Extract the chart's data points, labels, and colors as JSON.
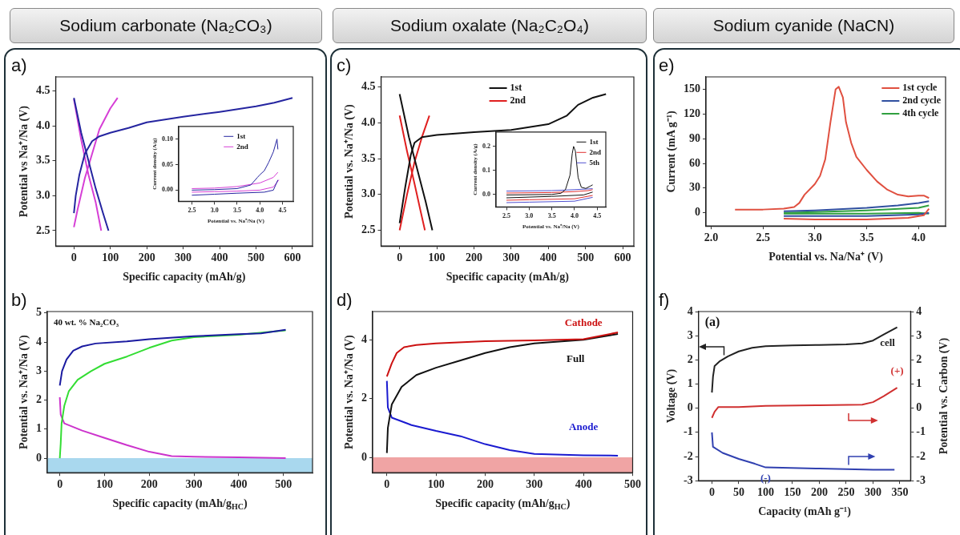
{
  "chart_data": [
    {
      "type": "line",
      "title": "Sodium carbonate (Na₂CO₃)",
      "annotations": [
        "a)"
      ],
      "xlabel": "Specific capacity (mAh/g)",
      "ylabel": "Potential vs Na⁺/Na (V)",
      "xlim": [
        -50,
        655
      ],
      "ylim": [
        2.28,
        4.7
      ],
      "xticks": [
        0,
        100,
        200,
        300,
        400,
        500,
        600
      ],
      "yticks": [
        {
          "value": 2.5,
          "label": "2.5"
        },
        {
          "value": 3,
          "label": "3.0"
        },
        {
          "value": 3.5,
          "label": "3.5"
        },
        {
          "value": 4,
          "label": "4.0"
        },
        {
          "value": 4.5,
          "label": "4.5"
        }
      ],
      "legend": false,
      "marker": "none",
      "series": [
        {
          "color": "#2525a0",
          "x": [
            0,
            5,
            15,
            30,
            50,
            70,
            100,
            150,
            200,
            300,
            400,
            500,
            550,
            600
          ],
          "values": [
            2.75,
            3.0,
            3.3,
            3.6,
            3.78,
            3.85,
            3.9,
            3.97,
            4.05,
            4.13,
            4.2,
            4.28,
            4.33,
            4.4
          ]
        },
        {
          "color": "#2525a0",
          "x": [
            0,
            20,
            40,
            60,
            80,
            95
          ],
          "values": [
            4.4,
            3.9,
            3.5,
            3.1,
            2.75,
            2.5
          ]
        },
        {
          "color": "#d63fd6",
          "x": [
            0,
            10,
            30,
            50,
            70,
            100,
            120
          ],
          "values": [
            2.55,
            2.8,
            3.25,
            3.6,
            3.95,
            4.25,
            4.4
          ]
        },
        {
          "color": "#d63fd6",
          "x": [
            0,
            20,
            40,
            60,
            75
          ],
          "values": [
            4.38,
            3.8,
            3.3,
            2.9,
            2.5
          ]
        }
      ]
    },
    {
      "type": "line",
      "xlabel": "Potential vs. Na⁺/Na (V)",
      "ylabel": "Current density (A/g)",
      "xlim": [
        2.21,
        4.74
      ],
      "ylim": [
        -0.022,
        0.125
      ],
      "xticks": [
        {
          "value": 2.5,
          "label": "2.5"
        },
        {
          "value": 3,
          "label": "3.0"
        },
        {
          "value": 3.5,
          "label": "3.5"
        },
        {
          "value": 4,
          "label": "4.0"
        },
        {
          "value": 4.5,
          "label": "4.5"
        }
      ],
      "yticks": [
        {
          "value": 0,
          "label": "0.00"
        },
        {
          "value": 0.05,
          "label": "0.05"
        },
        {
          "value": 0.1,
          "label": "0.10"
        }
      ],
      "legend": "top",
      "marker": "none",
      "series": [
        {
          "name": "1st",
          "color": "#2525a0",
          "x": [
            2.5,
            3.0,
            3.5,
            3.8,
            3.95,
            4.0,
            4.1,
            4.2,
            4.3,
            4.38,
            4.4
          ],
          "values": [
            0.0,
            0.001,
            0.003,
            0.01,
            0.025,
            0.03,
            0.038,
            0.055,
            0.075,
            0.1,
            0.08
          ]
        },
        {
          "color": "#2525a0",
          "x": [
            4.4,
            4.3,
            4.1,
            3.5,
            3.0,
            2.5
          ],
          "values": [
            0.02,
            0.0,
            -0.004,
            -0.006,
            -0.008,
            -0.01
          ]
        },
        {
          "name": "2nd",
          "color": "#d63fd6",
          "x": [
            2.5,
            3.0,
            3.5,
            4.0,
            4.3,
            4.4
          ],
          "values": [
            0.003,
            0.004,
            0.007,
            0.014,
            0.025,
            0.035
          ]
        },
        {
          "color": "#d63fd6",
          "x": [
            4.42,
            4.3,
            4.0,
            3.5,
            3.0,
            2.5
          ],
          "values": [
            0.02,
            0.006,
            0.0,
            -0.002,
            -0.003,
            -0.004
          ]
        }
      ]
    },
    {
      "type": "line",
      "annotations": [
        "b)",
        "40 wt. % Na₂CO₃"
      ],
      "xlabel": "Specific capacity (mAh/g$_{HC}$)",
      "ylabel": "Potential vs. Na⁺/Na (V)",
      "xlim": [
        -28,
        565
      ],
      "ylim": [
        -0.5,
        5.05
      ],
      "xticks": [
        0,
        100,
        200,
        300,
        400,
        500
      ],
      "yticks": [
        0,
        1,
        2,
        3,
        4,
        5
      ],
      "legend": false,
      "marker": "none",
      "bands": [
        {
          "axis": "y",
          "from": -0.5,
          "to": 0,
          "color": "#a9d8ee"
        }
      ],
      "series": [
        {
          "color": "#1a1aa0",
          "x": [
            0,
            5,
            15,
            30,
            50,
            80,
            150,
            200,
            300,
            400,
            450,
            505
          ],
          "values": [
            2.5,
            3.0,
            3.4,
            3.7,
            3.85,
            3.95,
            4.02,
            4.1,
            4.2,
            4.27,
            4.3,
            4.42
          ]
        },
        {
          "color": "#33dd33",
          "x": [
            0,
            2,
            4,
            10,
            20,
            40,
            70,
            100,
            150,
            200,
            250,
            300,
            400,
            505
          ],
          "values": [
            0,
            0.5,
            1.2,
            1.8,
            2.3,
            2.7,
            3.0,
            3.25,
            3.5,
            3.8,
            4.05,
            4.17,
            4.25,
            4.4
          ]
        },
        {
          "color": "#cc33cc",
          "x": [
            0,
            2,
            10,
            50,
            100,
            150,
            200,
            250,
            300,
            400,
            505
          ],
          "values": [
            2.1,
            1.5,
            1.2,
            0.95,
            0.7,
            0.45,
            0.22,
            0.07,
            0.05,
            0.03,
            0.0
          ]
        }
      ]
    },
    {
      "type": "line",
      "title": "Sodium oxalate (Na₂C₂O₄)",
      "annotations": [
        "c)"
      ],
      "xlabel": "Specific capacity (mAh/g)",
      "ylabel": "Potential vs. Na⁺/Na (V)",
      "xlim": [
        -50,
        630
      ],
      "ylim": [
        2.28,
        4.64
      ],
      "xticks": [
        0,
        100,
        200,
        300,
        400,
        500,
        600
      ],
      "yticks": [
        {
          "value": 2.5,
          "label": "2.5"
        },
        {
          "value": 3,
          "label": "3.0"
        },
        {
          "value": 3.5,
          "label": "3.5"
        },
        {
          "value": 4,
          "label": "4.0"
        },
        {
          "value": 4.5,
          "label": "4.5"
        }
      ],
      "legend": "top",
      "marker": "none",
      "series": [
        {
          "name": "1st",
          "color": "#111111",
          "x": [
            0,
            15,
            30,
            40,
            60,
            100,
            200,
            300,
            400,
            450,
            480,
            520,
            555
          ],
          "values": [
            2.6,
            3.1,
            3.55,
            3.72,
            3.8,
            3.83,
            3.87,
            3.9,
            3.98,
            4.1,
            4.25,
            4.35,
            4.4
          ]
        },
        {
          "color": "#111111",
          "x": [
            0,
            25,
            50,
            70,
            88
          ],
          "values": [
            4.4,
            3.8,
            3.3,
            2.9,
            2.5
          ]
        },
        {
          "name": "2nd",
          "color": "#e02020",
          "x": [
            0,
            20,
            40,
            60,
            80
          ],
          "values": [
            2.5,
            3.0,
            3.45,
            3.8,
            4.1
          ]
        },
        {
          "color": "#e02020",
          "x": [
            0,
            20,
            40,
            55,
            68
          ],
          "values": [
            4.1,
            3.6,
            3.15,
            2.8,
            2.5
          ]
        }
      ]
    },
    {
      "type": "line",
      "xlabel": "Potential vs. Na⁺/Na (V)",
      "ylabel": "Current density (A/g)",
      "xlim": [
        2.27,
        4.69
      ],
      "ylim": [
        -0.052,
        0.26
      ],
      "xticks": [
        {
          "value": 2.5,
          "label": "2.5"
        },
        {
          "value": 3,
          "label": "3.0"
        },
        {
          "value": 3.5,
          "label": "3.5"
        },
        {
          "value": 4,
          "label": "4.0"
        },
        {
          "value": 4.5,
          "label": "4.5"
        }
      ],
      "yticks": [
        {
          "value": 0,
          "label": "0.0"
        },
        {
          "value": 0.1,
          "label": "0.1"
        },
        {
          "value": 0.2,
          "label": "0.2"
        }
      ],
      "legend": "top right",
      "marker": "none",
      "series": [
        {
          "name": "1st",
          "color": "#111111",
          "x": [
            2.5,
            3.5,
            3.7,
            3.8,
            3.9,
            3.95,
            3.98,
            4.02,
            4.08,
            4.15,
            4.25,
            4.35,
            4.4
          ],
          "values": [
            -0.002,
            0.0,
            0.005,
            0.02,
            0.08,
            0.17,
            0.2,
            0.18,
            0.07,
            0.03,
            0.025,
            0.035,
            0.04
          ]
        },
        {
          "color": "#111111",
          "x": [
            4.4,
            4.2,
            3.5,
            2.5
          ],
          "values": [
            0.01,
            -0.002,
            -0.008,
            -0.014
          ]
        },
        {
          "name": "2nd",
          "color": "#e03030",
          "x": [
            2.5,
            3.5,
            4.0,
            4.3,
            4.4
          ],
          "values": [
            0.006,
            0.008,
            0.012,
            0.016,
            0.02
          ]
        },
        {
          "color": "#e03030",
          "x": [
            4.4,
            4.0,
            3.0,
            2.5
          ],
          "values": [
            -0.004,
            -0.018,
            -0.022,
            -0.024
          ]
        },
        {
          "name": "5th",
          "color": "#5050d0",
          "x": [
            2.5,
            3.5,
            4.0,
            4.4
          ],
          "values": [
            0.014,
            0.016,
            0.02,
            0.024
          ]
        },
        {
          "color": "#5050d0",
          "x": [
            4.4,
            4.0,
            3.0,
            2.5
          ],
          "values": [
            -0.012,
            -0.028,
            -0.032,
            -0.034
          ]
        }
      ]
    },
    {
      "type": "line",
      "annotations": [
        "d)"
      ],
      "xlabel": "Specific capacity (mAh/g$_{HC}$)",
      "ylabel": "Potential vs. Na⁺/Na (V)",
      "xlim": [
        -29,
        500
      ],
      "ylim": [
        -0.52,
        4.96
      ],
      "xticks": [
        0,
        100,
        200,
        300,
        400,
        500
      ],
      "yticks": [
        0,
        2,
        4
      ],
      "legend": false,
      "marker": "none",
      "bands": [
        {
          "axis": "y",
          "from": -0.52,
          "to": 0,
          "color": "#f0a4a4"
        }
      ],
      "series": [
        {
          "name": "Cathode",
          "color": "#cc1111",
          "x": [
            0,
            10,
            20,
            35,
            60,
            100,
            200,
            300,
            400,
            470
          ],
          "values": [
            2.75,
            3.2,
            3.55,
            3.75,
            3.82,
            3.88,
            3.95,
            3.98,
            4.02,
            4.25
          ]
        },
        {
          "name": "Full",
          "color": "#111111",
          "x": [
            0,
            2,
            10,
            30,
            60,
            100,
            150,
            200,
            250,
            300,
            400,
            470
          ],
          "values": [
            0.15,
            1.0,
            1.8,
            2.4,
            2.8,
            3.05,
            3.3,
            3.55,
            3.75,
            3.88,
            4.0,
            4.2
          ]
        },
        {
          "name": "Anode",
          "color": "#1a1ad0",
          "x": [
            0,
            2,
            10,
            50,
            100,
            150,
            200,
            250,
            300,
            400,
            470
          ],
          "values": [
            2.6,
            1.7,
            1.35,
            1.1,
            0.9,
            0.72,
            0.45,
            0.25,
            0.12,
            0.07,
            0.06
          ]
        }
      ]
    },
    {
      "type": "line",
      "title": "Sodium cyanide (NaCN)",
      "annotations": [
        "e)"
      ],
      "xlabel": "Potential vs. Na/Na⁺ (V)",
      "ylabel": "Current (mA g⁻¹)",
      "xlim": [
        1.95,
        4.26
      ],
      "ylim": [
        -16,
        165
      ],
      "xticks": [
        {
          "value": 2,
          "label": "2.0"
        },
        {
          "value": 2.5,
          "label": "2.5"
        },
        {
          "value": 3,
          "label": "3.0"
        },
        {
          "value": 3.5,
          "label": "3.5"
        },
        {
          "value": 4,
          "label": "4.0"
        }
      ],
      "yticks": [
        0,
        30,
        60,
        90,
        120,
        150
      ],
      "legend": "top right",
      "marker": "none",
      "series": [
        {
          "name": "1st cycle",
          "color": "#e05040",
          "x": [
            2.23,
            2.5,
            2.7,
            2.8,
            2.85,
            2.9,
            3.0,
            3.05,
            3.1,
            3.15,
            3.2,
            3.23,
            3.27,
            3.3,
            3.35,
            3.4,
            3.5,
            3.6,
            3.7,
            3.8,
            3.9,
            4.0,
            4.05,
            4.1
          ],
          "values": [
            4,
            4,
            5,
            7,
            12,
            22,
            35,
            45,
            65,
            110,
            150,
            153,
            140,
            110,
            85,
            68,
            52,
            38,
            28,
            22,
            20,
            21,
            21,
            18
          ]
        },
        {
          "color": "#e05040",
          "x": [
            4.1,
            4.05,
            3.9,
            3.5,
            3.0,
            2.7
          ],
          "values": [
            5,
            -3,
            -6,
            -8,
            -8,
            -7
          ]
        },
        {
          "name": "2nd cycle",
          "color": "#3050a0",
          "x": [
            2.7,
            3.0,
            3.5,
            3.8,
            4.0,
            4.1
          ],
          "values": [
            2,
            3,
            6,
            9,
            12,
            14
          ]
        },
        {
          "color": "#3050a0",
          "x": [
            4.1,
            4.0,
            3.5,
            3.0,
            2.7
          ],
          "values": [
            0,
            -2,
            -4,
            -4,
            -4
          ]
        },
        {
          "name": "4th cycle",
          "color": "#30a040",
          "x": [
            2.7,
            3.0,
            3.5,
            4.0,
            4.1
          ],
          "values": [
            0,
            1,
            3,
            6,
            9
          ]
        },
        {
          "color": "#30a040",
          "x": [
            4.1,
            4.0,
            3.5,
            3.0,
            2.7
          ],
          "values": [
            -1,
            0,
            -1,
            -1,
            -1
          ]
        }
      ]
    },
    {
      "type": "line",
      "annotations": [
        "f)",
        "(a)"
      ],
      "xlabel": "Capacity (mAh g⁻¹)",
      "ylabel": "Voltage (V)",
      "y2label": "Potential vs. Carbon (V)",
      "xlim": [
        -25,
        370
      ],
      "ylim": [
        -3,
        4
      ],
      "y2lim": [
        -3,
        4
      ],
      "xticks": [
        0,
        50,
        100,
        150,
        200,
        250,
        300,
        350
      ],
      "yticks": [
        -3,
        -2,
        -1,
        0,
        1,
        2,
        3,
        4
      ],
      "y2ticks": [
        -3,
        -2,
        -1,
        0,
        1,
        2,
        3,
        4
      ],
      "legend": false,
      "marker": "none",
      "series": [
        {
          "name": "cell",
          "color": "#222222",
          "x": [
            0,
            2,
            5,
            15,
            30,
            50,
            75,
            100,
            150,
            200,
            250,
            280,
            300,
            320,
            345
          ],
          "values": [
            0.65,
            1.3,
            1.75,
            1.95,
            2.15,
            2.35,
            2.5,
            2.57,
            2.6,
            2.62,
            2.64,
            2.68,
            2.8,
            3.05,
            3.35
          ]
        },
        {
          "name": "(+)",
          "color": "#d03030",
          "x": [
            0,
            5,
            12,
            50,
            100,
            200,
            280,
            300,
            320,
            345
          ],
          "values": [
            -0.4,
            -0.15,
            0.05,
            0.05,
            0.1,
            0.12,
            0.15,
            0.25,
            0.5,
            0.85
          ]
        },
        {
          "name": "(-)",
          "color": "#3040b0",
          "x": [
            0,
            2,
            20,
            50,
            80,
            100,
            200,
            300,
            340
          ],
          "values": [
            -1.0,
            -1.6,
            -1.85,
            -2.1,
            -2.3,
            -2.45,
            -2.5,
            -2.55,
            -2.55
          ]
        }
      ]
    }
  ]
}
